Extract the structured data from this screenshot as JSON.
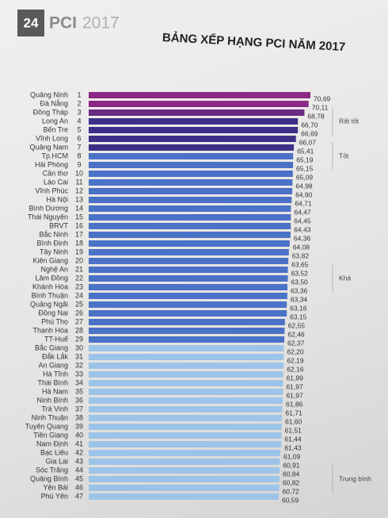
{
  "page_number": "24",
  "brand": "PCI",
  "brand_year": "2017",
  "chart_data": {
    "type": "bar",
    "title": "BẢNG XẾP HẠNG PCI NĂM 2017",
    "categories": [
      "Quảng Ninh",
      "Đà Nẵng",
      "Đồng Tháp",
      "Long An",
      "Bến Tre",
      "Vĩnh Long",
      "Quảng Nam",
      "Tp.HCM",
      "Hải Phòng",
      "Cần thơ",
      "Lào Cai",
      "Vĩnh Phúc",
      "Hà Nội",
      "Bình Dương",
      "Thái Nguyên",
      "BRVT",
      "Bắc Ninh",
      "Bình Định",
      "Tây Ninh",
      "Kiên Giang",
      "Nghệ An",
      "Lâm Đồng",
      "Khánh Hòa",
      "Bình Thuận",
      "Quảng Ngãi",
      "Đồng Nai",
      "Phú Thọ",
      "Thanh Hóa",
      "TT-Huế",
      "Bắc Giang",
      "Đắk Lắk",
      "An Giang",
      "Hà Tĩnh",
      "Thái Bình",
      "Hà Nam",
      "Ninh Bình",
      "Trà Vinh",
      "Ninh Thuận",
      "Tuyên Quang",
      "Tiền Giang",
      "Nam Định",
      "Bạc Liêu",
      "Gia Lai",
      "Sóc Trăng",
      "Quảng Bình",
      "Yên Bái",
      "Phú Yên"
    ],
    "ranks": [
      1,
      2,
      3,
      4,
      5,
      6,
      7,
      8,
      9,
      10,
      11,
      12,
      13,
      14,
      15,
      16,
      17,
      18,
      19,
      20,
      21,
      22,
      23,
      24,
      25,
      26,
      27,
      28,
      29,
      30,
      31,
      32,
      33,
      34,
      35,
      36,
      37,
      38,
      39,
      40,
      41,
      42,
      43,
      44,
      45,
      46,
      47
    ],
    "values": [
      70.69,
      70.11,
      68.78,
      66.7,
      66.69,
      66.07,
      65.41,
      65.19,
      65.15,
      65.09,
      64.98,
      64.9,
      64.71,
      64.47,
      64.45,
      64.43,
      64.36,
      64.08,
      63.82,
      63.65,
      63.52,
      63.5,
      63.36,
      63.34,
      63.16,
      63.15,
      62.55,
      62.46,
      62.37,
      62.2,
      62.19,
      62.16,
      61.99,
      61.97,
      61.97,
      61.86,
      61.71,
      61.6,
      61.51,
      61.44,
      61.43,
      61.09,
      60.91,
      60.84,
      60.82,
      60.72,
      60.59
    ],
    "value_labels": [
      "70,69",
      "70,11",
      "68,78",
      "66,70",
      "66,69",
      "66,07",
      "65,41",
      "65,19",
      "65,15",
      "65,09",
      "64,98",
      "64,90",
      "64,71",
      "64,47",
      "64,45",
      "64,43",
      "64,36",
      "64,08",
      "63,82",
      "63,65",
      "63,52",
      "63,50",
      "63,36",
      "63,34",
      "63,16",
      "63,15",
      "62,55",
      "62,46",
      "62,37",
      "62,20",
      "62,19",
      "62,16",
      "61,99",
      "61,97",
      "61,97",
      "61,86",
      "61,71",
      "61,60",
      "61,51",
      "61,44",
      "61,43",
      "61,09",
      "60,91",
      "60,84",
      "60,82",
      "60,72",
      "60,59"
    ],
    "bar_colors": [
      "#8a2a86",
      "#8a2a86",
      "#6a2a84",
      "#3d2f88",
      "#3d2f88",
      "#3d2f88",
      "#3d2f88",
      "#4a72c6",
      "#4a72c6",
      "#4a72c6",
      "#4a72c6",
      "#4a72c6",
      "#4a72c6",
      "#4a72c6",
      "#4a72c6",
      "#4a72c6",
      "#4a72c6",
      "#4a72c6",
      "#4a72c6",
      "#4a72c6",
      "#4a72c6",
      "#4a72c6",
      "#4a72c6",
      "#4a72c6",
      "#4a72c6",
      "#4a72c6",
      "#4a72c6",
      "#4a72c6",
      "#4a72c6",
      "#9cc4e8",
      "#9cc4e8",
      "#9cc4e8",
      "#9cc4e8",
      "#9cc4e8",
      "#9cc4e8",
      "#9cc4e8",
      "#9cc4e8",
      "#9cc4e8",
      "#9cc4e8",
      "#9cc4e8",
      "#9cc4e8",
      "#9cc4e8",
      "#9cc4e8",
      "#9cc4e8",
      "#9cc4e8",
      "#9cc4e8",
      "#9cc4e8"
    ],
    "groups": [
      "Rất tốt",
      "Tốt",
      "Khá",
      "Trung bình"
    ]
  }
}
